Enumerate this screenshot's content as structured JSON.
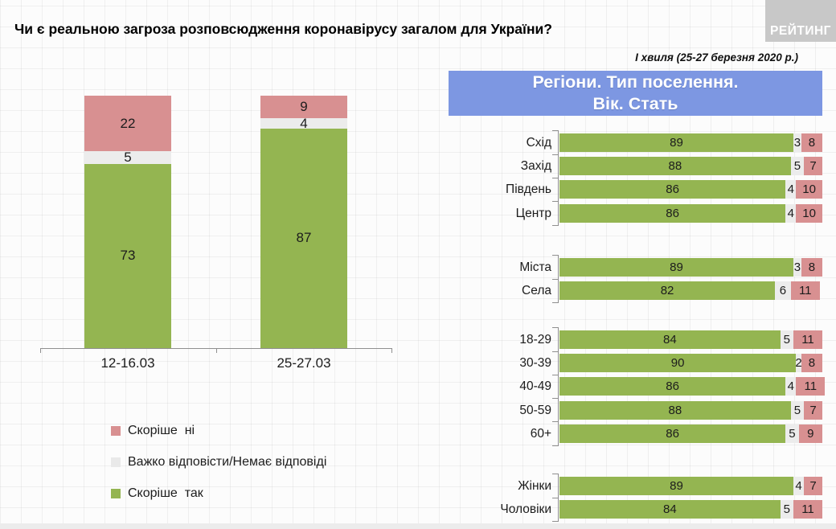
{
  "header": {
    "title": "Чи є реальною загроза розповсюдження коронавірусу загалом для України?",
    "logo": "РЕЙТИНГ",
    "wave_note": "І хвиля (25-27 березня 2020 р.)"
  },
  "panel": {
    "header_line1": "Регіони. Тип поселення.",
    "header_line2": "Вік. Стать"
  },
  "colors": {
    "green": "#94b551",
    "neutral": "#ececec",
    "pink": "#d89091",
    "blue_header": "#7d97e2",
    "logo_bg": "#c8c8c8",
    "axis": "#8f8f8f"
  },
  "legend": [
    {
      "label": "Скоріше  ні",
      "color_key": "pink"
    },
    {
      "label": "Важко відповісти/Немає відповіді",
      "color_key": "neutral"
    },
    {
      "label": "Скоріше  так",
      "color_key": "green"
    }
  ],
  "chart_data": [
    {
      "type": "bar",
      "subtype": "stacked-vertical",
      "title": "",
      "categories": [
        "12-16.03",
        "25-27.03"
      ],
      "series": [
        {
          "name": "Скоріше так",
          "color_key": "green",
          "values": [
            73,
            87
          ]
        },
        {
          "name": "Важко відповісти/Немає відповіді",
          "color_key": "neutral",
          "values": [
            5,
            4
          ]
        },
        {
          "name": "Скоріше ні",
          "color_key": "pink",
          "values": [
            22,
            9
          ]
        }
      ],
      "ylim": [
        0,
        100
      ],
      "legend_position": "bottom-left",
      "grid": false
    },
    {
      "type": "bar",
      "subtype": "stacked-horizontal",
      "title": "Регіони. Тип поселення. Вік. Стать",
      "series_order": [
        "Скоріше так",
        "Важко відповісти/Немає відповіді",
        "Скоріше ні"
      ],
      "series_color_keys": [
        "green",
        "neutral",
        "pink"
      ],
      "xlim": [
        0,
        100
      ],
      "groups": [
        {
          "name": "Регіони",
          "rows": [
            {
              "label": "Схід",
              "values": [
                89,
                3,
                8
              ]
            },
            {
              "label": "Захід",
              "values": [
                88,
                5,
                7
              ]
            },
            {
              "label": "Південь",
              "values": [
                86,
                4,
                10
              ]
            },
            {
              "label": "Центр",
              "values": [
                86,
                4,
                10
              ]
            }
          ]
        },
        {
          "name": "Тип поселення",
          "rows": [
            {
              "label": "Міста",
              "values": [
                89,
                3,
                8
              ]
            },
            {
              "label": "Села",
              "values": [
                82,
                6,
                11
              ]
            }
          ]
        },
        {
          "name": "Вік",
          "rows": [
            {
              "label": "18-29",
              "values": [
                84,
                5,
                11
              ]
            },
            {
              "label": "30-39",
              "values": [
                90,
                2,
                8
              ]
            },
            {
              "label": "40-49",
              "values": [
                86,
                4,
                11
              ]
            },
            {
              "label": "50-59",
              "values": [
                88,
                5,
                7
              ]
            },
            {
              "label": "60+",
              "values": [
                86,
                5,
                9
              ]
            }
          ]
        },
        {
          "name": "Стать",
          "rows": [
            {
              "label": "Жінки",
              "values": [
                89,
                4,
                7
              ]
            },
            {
              "label": "Чоловіки",
              "values": [
                84,
                5,
                11
              ]
            }
          ]
        }
      ]
    }
  ]
}
